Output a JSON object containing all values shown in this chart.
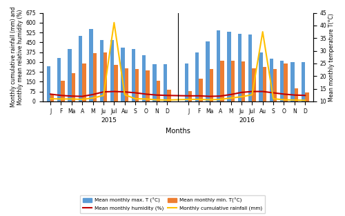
{
  "months_2015": [
    "J",
    "F",
    "Ma",
    "A",
    "M",
    "Ju",
    "Jul",
    "Au",
    "S",
    "O",
    "N",
    "D"
  ],
  "months_2016": [
    "J",
    "F",
    "Ma",
    "A",
    "M",
    "Ju",
    "Jul",
    "Au",
    "S",
    "O",
    "N",
    "D"
  ],
  "max_temp_2015": [
    270,
    330,
    400,
    500,
    550,
    465,
    465,
    410,
    400,
    350,
    285,
    285
  ],
  "max_temp_2016": [
    290,
    370,
    455,
    540,
    530,
    515,
    510,
    375,
    325,
    310,
    300,
    300
  ],
  "min_temp_2015": [
    50,
    155,
    215,
    290,
    365,
    370,
    280,
    250,
    245,
    235,
    155,
    90
  ],
  "min_temp_2016": [
    80,
    175,
    245,
    310,
    310,
    305,
    250,
    260,
    245,
    290,
    100,
    70
  ],
  "humidity_2015": [
    55,
    45,
    40,
    38,
    52,
    72,
    75,
    72,
    65,
    55,
    48,
    45
  ],
  "humidity_2016": [
    42,
    42,
    38,
    40,
    52,
    68,
    75,
    75,
    65,
    55,
    48,
    45
  ],
  "rainfall_2015": [
    20,
    18,
    18,
    15,
    25,
    45,
    600,
    50,
    20,
    18,
    12,
    10
  ],
  "rainfall_2016": [
    15,
    15,
    12,
    15,
    25,
    35,
    50,
    530,
    20,
    12,
    10,
    8
  ],
  "bar_color_max": "#5B9BD5",
  "bar_color_min": "#ED7D31",
  "line_color_humidity": "#C00000",
  "line_color_rainfall": "#FFC000",
  "ylim_left": [
    0,
    675
  ],
  "ylim_right": [
    10,
    45
  ],
  "yticks_left": [
    0,
    75,
    150,
    225,
    300,
    375,
    450,
    525,
    600,
    675
  ],
  "yticks_right": [
    10,
    15,
    20,
    25,
    30,
    35,
    40,
    45
  ],
  "ylabel_left": "Monthly cumulative rainfall (mm) and\nMonthly mean relative humidity (%)",
  "ylabel_right": "Mean monthly temperature T(°C)",
  "xlabel": "Months",
  "year_labels": [
    "2015",
    "2016"
  ],
  "legend_labels": [
    "Mean monthly max. T (°C)",
    "Mean monthly min. T(°C)",
    "Mean monthly humidity (%)",
    "Monthly cumulative rainfall (mm)"
  ],
  "bar_width": 0.35
}
